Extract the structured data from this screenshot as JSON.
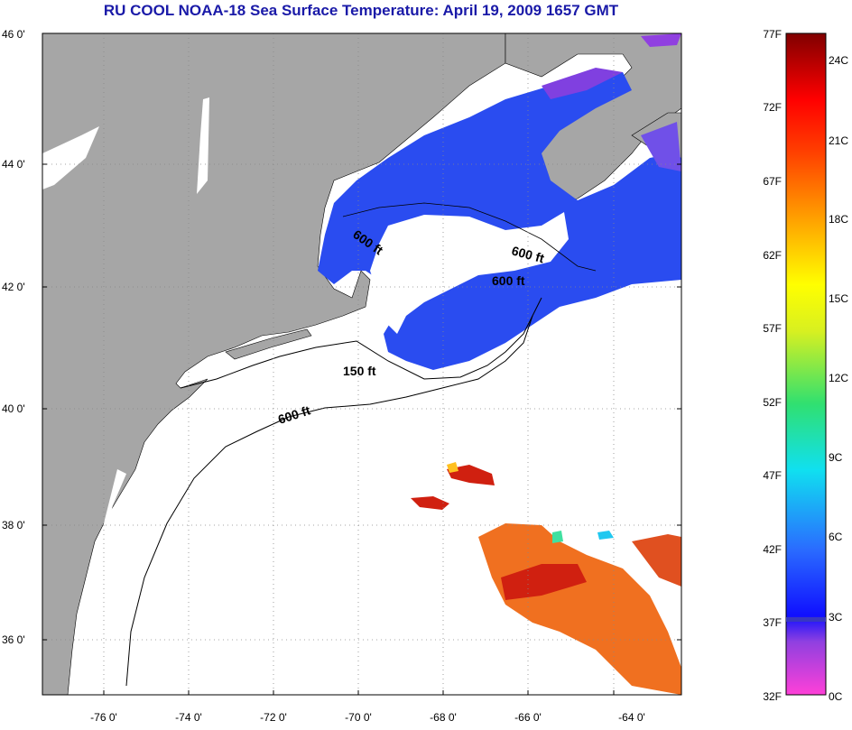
{
  "title": "RU COOL  NOAA-18  Sea Surface Temperature:  April 19, 2009 1657 GMT",
  "map": {
    "lon_range": [
      -77,
      -63
    ],
    "lat_range": [
      35,
      46
    ],
    "lat_ticks": [
      "46 0'",
      "44 0'",
      "42 0'",
      "40 0'",
      "38 0'",
      "36 0'"
    ],
    "lon_ticks": [
      "-76 0'",
      "-74 0'",
      "-72 0'",
      "-70 0'",
      "-68 0'",
      "-66 0'",
      "-64 0'"
    ],
    "land_color": "#a6a6a6",
    "ocean_color": "#ffffff",
    "contour_labels": [
      {
        "text": "600 ft",
        "id": "gom-1"
      },
      {
        "text": "600 ft",
        "id": "gom-2"
      },
      {
        "text": "600 ft",
        "id": "gom-3"
      },
      {
        "text": "150 ft",
        "id": "shelf-150"
      },
      {
        "text": "600 ft",
        "id": "shelf-600"
      }
    ]
  },
  "colorbar": {
    "f_labels": [
      "77F",
      "72F",
      "67F",
      "62F",
      "57F",
      "52F",
      "47F",
      "42F",
      "37F",
      "32F"
    ],
    "c_labels": [
      "24C",
      "21C",
      "18C",
      "15C",
      "12C",
      "9C",
      "6C",
      "3C",
      "0C"
    ],
    "colors": [
      "#ff40d0",
      "#a040e0",
      "#1010ff",
      "#2a5cff",
      "#20a8ff",
      "#10e8f0",
      "#30e060",
      "#c0f020",
      "#ffff00",
      "#ffc000",
      "#ff8000",
      "#ff4000",
      "#ff0000",
      "#c00000",
      "#800000"
    ]
  }
}
